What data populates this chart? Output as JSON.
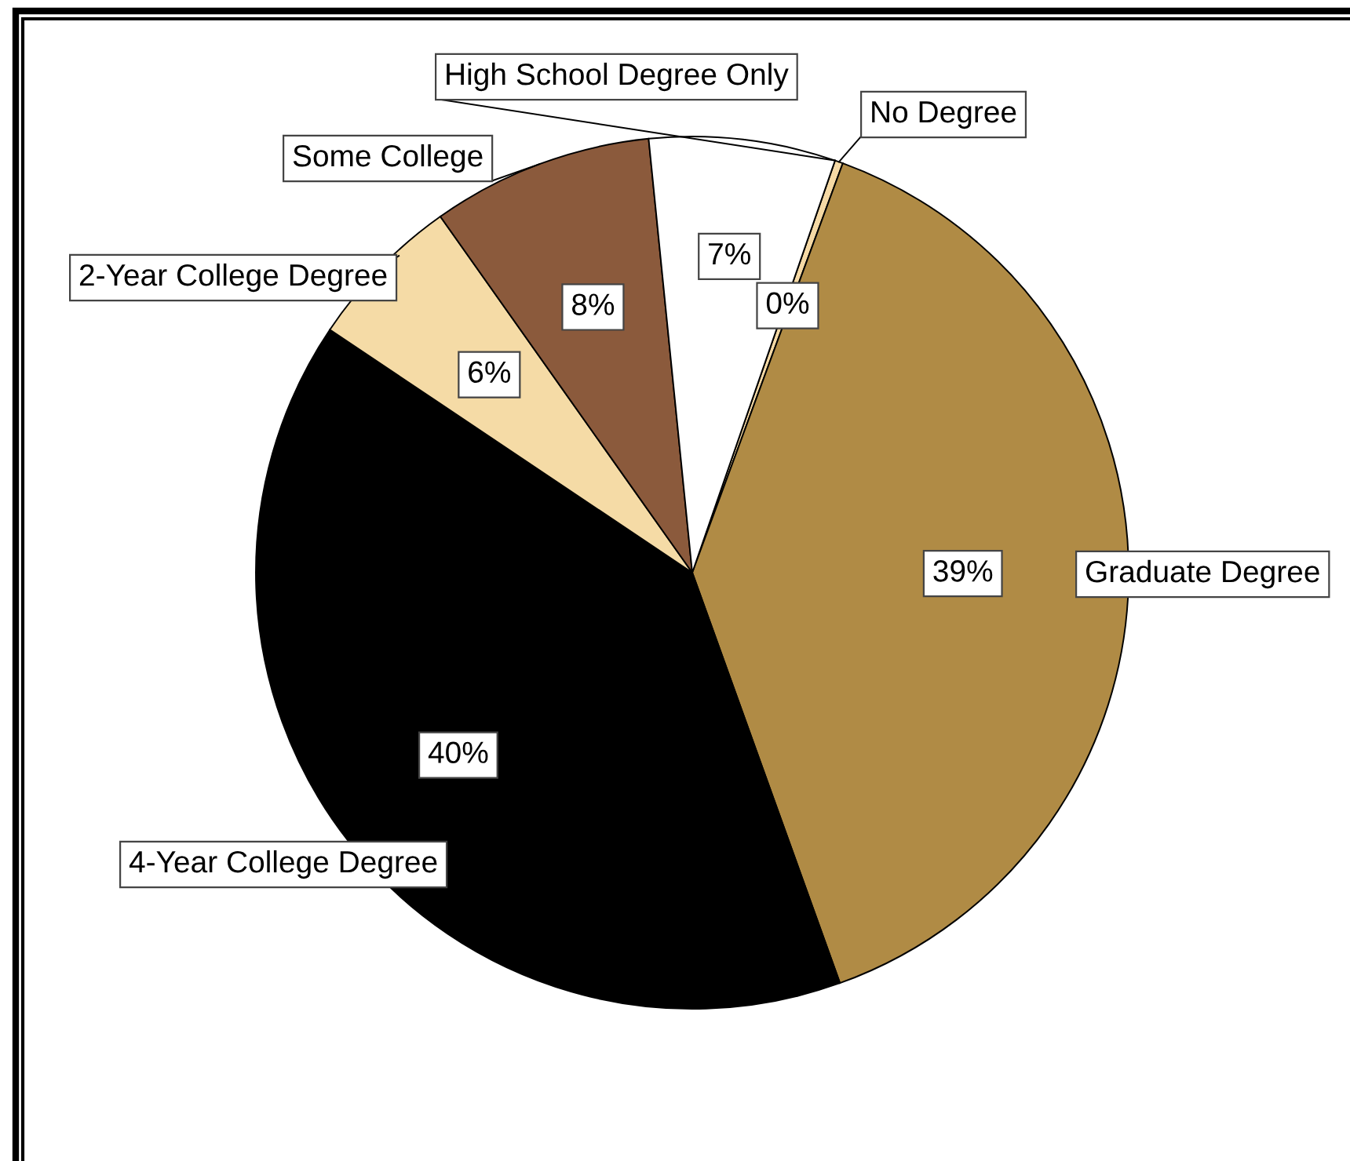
{
  "chart_data": {
    "type": "pie",
    "categories": [
      "No Degree",
      "Graduate Degree",
      "4-Year College Degree",
      "2-Year College Degree",
      "Some College",
      "High School Degree Only"
    ],
    "values": [
      0.3,
      38.9,
      39.9,
      5.8,
      8.2,
      6.9
    ],
    "colors": [
      "#f5d9a5",
      "#b08b45",
      "#000000",
      "#f5dba6",
      "#8b5a3c",
      "#ffffff"
    ],
    "value_labels": [
      "0%",
      "39%",
      "40%",
      "6%",
      "8%",
      "7%"
    ]
  }
}
